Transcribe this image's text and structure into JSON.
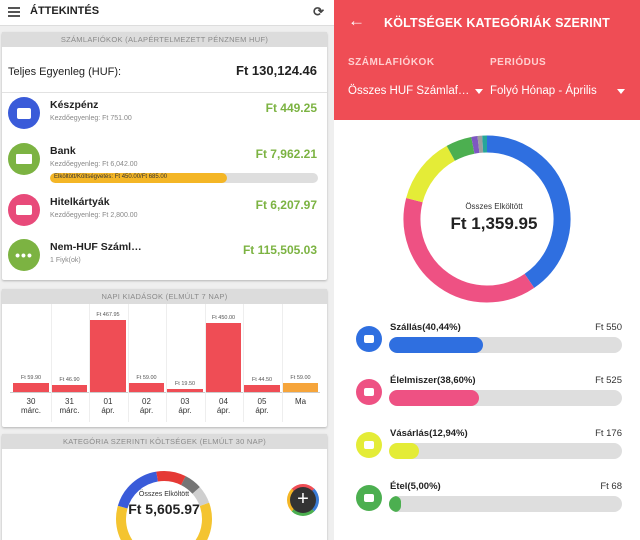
{
  "left": {
    "title": "ÁTTEKINTÉS",
    "accounts_header": "SZÁMLAFIÓKOK (ALAPÉRTELMEZETT PÉNZNEM HUF)",
    "total_label": "Teljes Egyenleg (HUF):",
    "total_value": "Ft 130,124.46",
    "accounts": [
      {
        "name": "Készpénz",
        "sub": "Kezdőegyenleg: Ft 751.00",
        "value": "Ft 449.25",
        "color": "#3a5bd9",
        "icon": "wallet-icon"
      },
      {
        "name": "Bank",
        "sub": "Kezdőegyenleg: Ft 6,042.00",
        "value": "Ft 7,962.21",
        "color": "#7cb342",
        "icon": "bank-icon",
        "budget_text": "Elköltött/Költségvetés: Ft 450.00/Ft 685.00",
        "budget_fraction": 0.66
      },
      {
        "name": "Hitelkártyák",
        "sub": "Kezdőegyenleg: Ft 2,800.00",
        "value": "Ft 6,207.97",
        "color": "#e84a7a",
        "icon": "credit-card-icon"
      },
      {
        "name": "Nem-HUF Száml…",
        "sub": "1 Fiyk(ok)",
        "value": "Ft 115,505.03",
        "color": "#7cb342",
        "icon": "more-icon"
      }
    ],
    "daily_header": "NAPI KIADÁSOK (ELMÚLT 7 NAP)",
    "categories_header": "KATEGÓRIA SZERINTI KÖLTSÉGEK (ELMÚLT 30 NAP)",
    "cat_center_label": "Összes Elköltött",
    "cat_center_value": "Ft 5,605.97",
    "fab_label": "+"
  },
  "chart_data": [
    {
      "type": "bar",
      "title": "NAPI KIADÁSOK (ELMÚLT 7 NAP)",
      "categories": [
        "30 márc.",
        "31 márc.",
        "01 ápr.",
        "02 ápr.",
        "03 ápr.",
        "04 ápr.",
        "05 ápr.",
        "Ma"
      ],
      "values": [
        59.9,
        46.9,
        467.95,
        59.0,
        19.5,
        450.0,
        44.5,
        59.0
      ],
      "data_labels": [
        "Ft 59.90",
        "Ft 46.90",
        "Ft 467.95",
        "Ft 59.00",
        "Ft 19.50",
        "Ft 450.00",
        "Ft 44.50",
        "Ft 59.00"
      ],
      "highlight_last": true,
      "colors": {
        "bar": "#ef4d55",
        "today": "#f6a53b"
      }
    },
    {
      "type": "pie",
      "title": "KÖLTSÉGEK KATEGÓRIÁK SZERINT",
      "center_label": "Összes Elköltött",
      "center_value": "Ft 1,359.95",
      "slices": [
        {
          "name": "Szállás",
          "value": 40.44,
          "color": "#2f6fe0"
        },
        {
          "name": "Élelmiszer",
          "value": 38.6,
          "color": "#ee5183"
        },
        {
          "name": "Vásárlás",
          "value": 12.94,
          "color": "#e4ec37"
        },
        {
          "name": "Étel",
          "value": 5.0,
          "color": "#4caf50"
        },
        {
          "name": "",
          "value": 1.2,
          "color": "#7e57c2"
        },
        {
          "name": "",
          "value": 0.9,
          "color": "#9e9e9e"
        },
        {
          "name": "",
          "value": 0.92,
          "color": "#26a69a"
        }
      ]
    },
    {
      "type": "pie",
      "title": "KATEGÓRIA SZERINTI KÖLTSÉGEK (ELMÚLT 30 NAP)",
      "center_label": "Összes Elköltött",
      "center_value": "Ft 5,605.97",
      "slices": [
        {
          "name": "",
          "value": 60,
          "color": "#f4c430"
        },
        {
          "name": "",
          "value": 18,
          "color": "#3a5bd9"
        },
        {
          "name": "",
          "value": 10,
          "color": "#e53935"
        },
        {
          "name": "",
          "value": 6,
          "color": "#757575"
        },
        {
          "name": "",
          "value": 6,
          "color": "#cfcfcf"
        }
      ]
    }
  ],
  "right": {
    "title": "KÖLTSÉGEK KATEGÓRIÁK SZERINT",
    "account_label": "SZÁMLAFIÓKOK",
    "account_value": "Összes HUF Számlaf…",
    "period_label": "PERIÓDUS",
    "period_value": "Folyó Hónap - Április",
    "center_label": "Összes Elköltött",
    "center_value": "Ft 1,359.95",
    "categories": [
      {
        "name": "Szállás(40,44%)",
        "amount": "Ft 550",
        "fraction": 0.4044,
        "color": "#2f6fe0",
        "icon_bg": "#2f6fe0",
        "icon": "bed-icon"
      },
      {
        "name": "Élelmiszer(38,60%)",
        "amount": "Ft 525",
        "fraction": 0.386,
        "color": "#ee5183",
        "icon_bg": "#ee5183",
        "icon": "grocery-icon"
      },
      {
        "name": "Vásárlás(12,94%)",
        "amount": "Ft 176",
        "fraction": 0.1294,
        "color": "#e4ec37",
        "icon_bg": "#e4ec37",
        "icon": "shopping-bag-icon"
      },
      {
        "name": "Étel(5,00%)",
        "amount": "Ft 68",
        "fraction": 0.05,
        "color": "#4caf50",
        "icon_bg": "#4caf50",
        "icon": "burger-icon"
      }
    ]
  }
}
